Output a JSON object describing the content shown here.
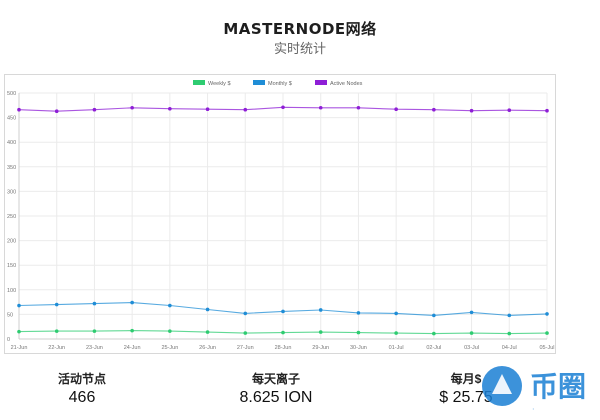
{
  "page": {
    "title": "MASTERNODE网络",
    "subtitle": "实时统计"
  },
  "colors": {
    "weekly": "#2ecc71",
    "monthly": "#1f8dd6",
    "active": "#8e1ed6",
    "grid": "#ebebeb",
    "axis": "#999999"
  },
  "chart_data": {
    "type": "line",
    "title": "",
    "xlabel": "",
    "ylabel": "",
    "ylim": [
      0,
      500
    ],
    "yticks": [
      0,
      50,
      100,
      150,
      200,
      250,
      300,
      350,
      400,
      450,
      500
    ],
    "grid": true,
    "legend_position": "top-center",
    "categories": [
      "21-Jun",
      "22-Jun",
      "23-Jun",
      "24-Jun",
      "25-Jun",
      "26-Jun",
      "27-Jun",
      "28-Jun",
      "29-Jun",
      "30-Jun",
      "01-Jul",
      "02-Jul",
      "03-Jul",
      "04-Jul",
      "05-Jul"
    ],
    "series": [
      {
        "name": "Weekly $",
        "color_key": "weekly",
        "values": [
          15,
          16,
          16,
          17,
          16,
          14,
          12,
          13,
          14,
          13,
          12,
          11,
          12,
          11,
          12
        ]
      },
      {
        "name": "Monthly $",
        "color_key": "monthly",
        "values": [
          68,
          70,
          72,
          74,
          68,
          60,
          52,
          56,
          59,
          53,
          52,
          48,
          54,
          48,
          51
        ]
      },
      {
        "name": "Active Nodes",
        "color_key": "active",
        "values": [
          466,
          463,
          466,
          470,
          468,
          467,
          466,
          471,
          470,
          470,
          467,
          466,
          464,
          465,
          464
        ]
      }
    ]
  },
  "stats": [
    {
      "label": "活动节点",
      "value": "466"
    },
    {
      "label": "每天离子",
      "value": "8.625 ION"
    },
    {
      "label": "每月$",
      "value": "$ 25.75"
    }
  ],
  "watermark": {
    "text": "币圈"
  }
}
